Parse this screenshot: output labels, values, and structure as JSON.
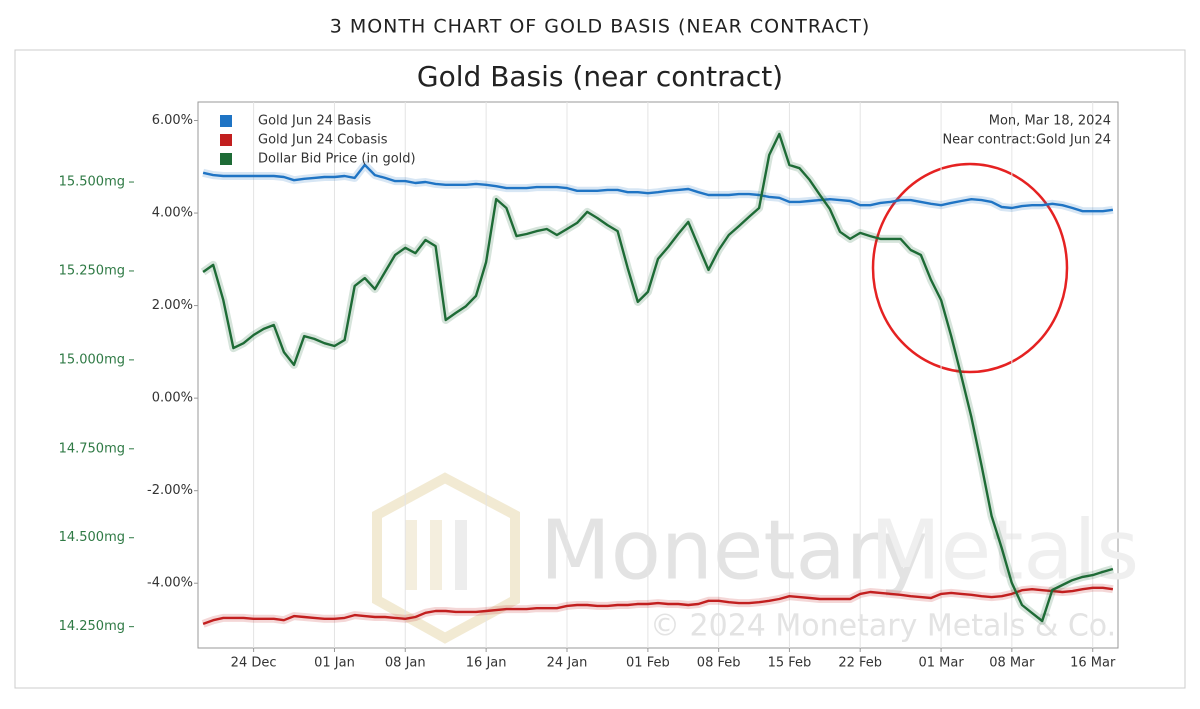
{
  "header": {
    "title": "3 MONTH CHART OF GOLD BASIS (NEAR CONTRACT)"
  },
  "chart_data": {
    "type": "line",
    "title": "Gold Basis (near contract)",
    "annotations": [
      "Mon, Mar 18, 2024",
      "Near contract:Gold Jun 24"
    ],
    "watermark": [
      "Monetary",
      "Metals",
      "© 2024 Monetary Metals & Co."
    ],
    "legend": "top-left",
    "grid": "x",
    "categories": [
      null,
      null,
      null,
      null,
      null,
      "24 Dec",
      null,
      null,
      null,
      null,
      null,
      null,
      null,
      "01 Jan",
      null,
      null,
      null,
      null,
      null,
      null,
      "08 Jan",
      null,
      null,
      null,
      null,
      null,
      null,
      null,
      "16 Jan",
      null,
      null,
      null,
      null,
      null,
      null,
      null,
      "24 Jan",
      null,
      null,
      null,
      null,
      null,
      null,
      null,
      "01 Feb",
      null,
      null,
      null,
      null,
      null,
      null,
      "08 Feb",
      null,
      null,
      null,
      null,
      null,
      null,
      "15 Feb",
      null,
      null,
      null,
      null,
      null,
      null,
      "22 Feb",
      null,
      null,
      null,
      null,
      null,
      null,
      null,
      "01 Mar",
      null,
      null,
      null,
      null,
      null,
      null,
      "08 Mar",
      null,
      null,
      null,
      null,
      null,
      null,
      null,
      "16 Mar",
      null,
      null
    ],
    "ylim": [
      -5.4,
      6.4
    ],
    "yticks": [
      {
        "value": 6,
        "label": "6.00%"
      },
      {
        "value": 4,
        "label": "4.00%"
      },
      {
        "value": 2,
        "label": "2.00%"
      },
      {
        "value": 0,
        "label": "0.00%"
      },
      {
        "value": -2,
        "label": "-2.00%"
      },
      {
        "value": -4,
        "label": "-4.00%"
      }
    ],
    "y2lim": [
      14.19,
      15.725
    ],
    "y2ticks": [
      {
        "value": 15.5,
        "label": "15.500mg"
      },
      {
        "value": 15.25,
        "label": "15.250mg"
      },
      {
        "value": 15,
        "label": "15.000mg"
      },
      {
        "value": 14.75,
        "label": "14.750mg"
      },
      {
        "value": 14.5,
        "label": "14.500mg"
      },
      {
        "value": 14.25,
        "label": "14.250mg"
      }
    ],
    "series": [
      {
        "name": "Gold Jun 24 Basis",
        "color": "#1f74c4",
        "values": [
          4.87,
          4.82,
          4.8,
          4.8,
          4.8,
          4.8,
          4.8,
          4.8,
          4.78,
          4.71,
          4.74,
          4.76,
          4.78,
          4.78,
          4.8,
          4.76,
          5.04,
          4.82,
          4.76,
          4.69,
          4.69,
          4.65,
          4.67,
          4.63,
          4.61,
          4.61,
          4.61,
          4.63,
          4.61,
          4.58,
          4.54,
          4.54,
          4.54,
          4.56,
          4.56,
          4.56,
          4.54,
          4.48,
          4.48,
          4.48,
          4.5,
          4.5,
          4.45,
          4.45,
          4.43,
          4.45,
          4.48,
          4.5,
          4.52,
          4.45,
          4.39,
          4.39,
          4.39,
          4.41,
          4.41,
          4.39,
          4.35,
          4.33,
          4.24,
          4.24,
          4.26,
          4.28,
          4.3,
          4.28,
          4.26,
          4.17,
          4.17,
          4.22,
          4.24,
          4.28,
          4.28,
          4.24,
          4.2,
          4.17,
          4.22,
          4.26,
          4.3,
          4.28,
          4.24,
          4.13,
          4.11,
          4.15,
          4.17,
          4.17,
          4.2,
          4.17,
          4.11,
          4.04,
          4.04,
          4.04,
          4.07
        ]
      },
      {
        "name": "Gold Jun 24 Cobasis",
        "color": "#c21f1f",
        "values": [
          -4.88,
          -4.8,
          -4.75,
          -4.75,
          -4.75,
          -4.77,
          -4.77,
          -4.77,
          -4.8,
          -4.71,
          -4.73,
          -4.75,
          -4.77,
          -4.77,
          -4.75,
          -4.69,
          -4.71,
          -4.73,
          -4.73,
          -4.75,
          -4.77,
          -4.73,
          -4.64,
          -4.6,
          -4.6,
          -4.62,
          -4.62,
          -4.62,
          -4.6,
          -4.58,
          -4.56,
          -4.56,
          -4.56,
          -4.54,
          -4.54,
          -4.54,
          -4.49,
          -4.47,
          -4.47,
          -4.49,
          -4.49,
          -4.47,
          -4.47,
          -4.45,
          -4.45,
          -4.43,
          -4.45,
          -4.45,
          -4.47,
          -4.45,
          -4.38,
          -4.38,
          -4.41,
          -4.43,
          -4.43,
          -4.41,
          -4.38,
          -4.34,
          -4.28,
          -4.3,
          -4.32,
          -4.34,
          -4.34,
          -4.34,
          -4.34,
          -4.23,
          -4.19,
          -4.21,
          -4.23,
          -4.25,
          -4.28,
          -4.3,
          -4.32,
          -4.23,
          -4.21,
          -4.23,
          -4.25,
          -4.28,
          -4.3,
          -4.28,
          -4.23,
          -4.15,
          -4.13,
          -4.15,
          -4.17,
          -4.19,
          -4.17,
          -4.13,
          -4.1,
          -4.1,
          -4.13
        ]
      },
      {
        "name": "Dollar Bid Price (in gold)",
        "color": "#1e6b36",
        "axis": "y2",
        "values": [
          15.247,
          15.267,
          15.168,
          15.033,
          15.047,
          15.07,
          15.087,
          15.098,
          15.022,
          14.986,
          15.067,
          15.059,
          15.047,
          15.039,
          15.056,
          15.208,
          15.23,
          15.199,
          15.247,
          15.295,
          15.315,
          15.3,
          15.337,
          15.32,
          15.112,
          15.132,
          15.151,
          15.18,
          15.275,
          15.452,
          15.427,
          15.348,
          15.354,
          15.362,
          15.368,
          15.351,
          15.368,
          15.385,
          15.416,
          15.399,
          15.379,
          15.362,
          15.258,
          15.163,
          15.191,
          15.284,
          15.317,
          15.354,
          15.388,
          15.32,
          15.253,
          15.309,
          15.351,
          15.376,
          15.402,
          15.427,
          15.576,
          15.635,
          15.548,
          15.539,
          15.506,
          15.464,
          15.424,
          15.36,
          15.34,
          15.357,
          15.348,
          15.34,
          15.34,
          15.34,
          15.309,
          15.295,
          15.225,
          15.168,
          15.067,
          14.955,
          14.839,
          14.704,
          14.561,
          14.471,
          14.373,
          14.311,
          14.288,
          14.266,
          14.353,
          14.367,
          14.381,
          14.39,
          14.395,
          14.404,
          14.412
        ]
      }
    ]
  }
}
